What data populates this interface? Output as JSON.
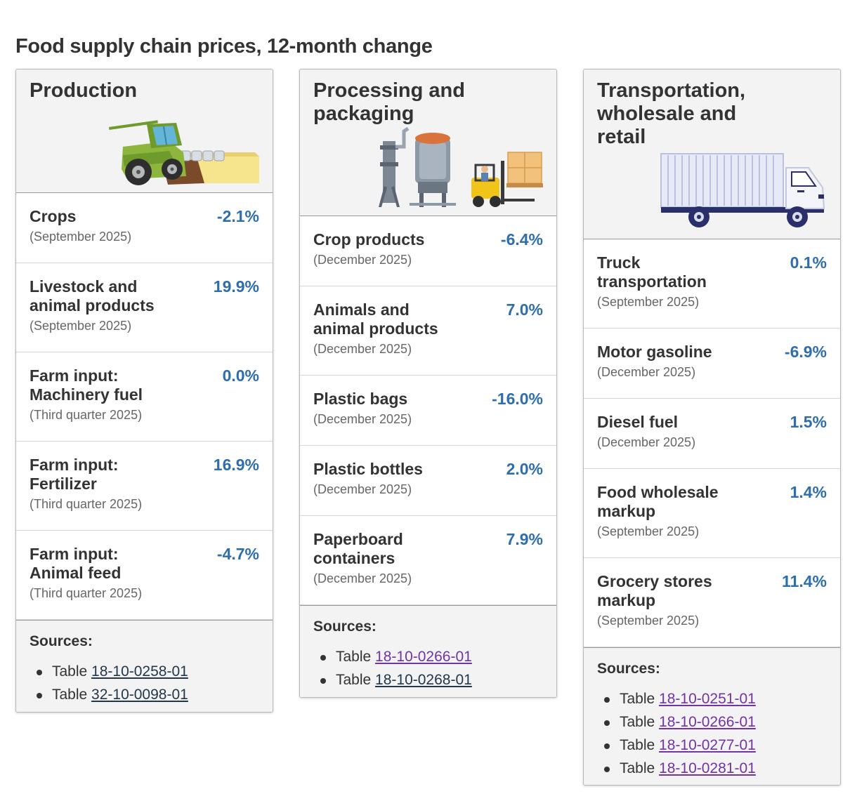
{
  "title": "Food supply chain prices, 12-month change",
  "colors": {
    "value": "#2e6ead",
    "link": "#23374b",
    "visited_link": "#7133a6"
  },
  "cards": [
    {
      "title": "Production",
      "illustration": "combine-harvester-icon",
      "rows": [
        {
          "name": "Crops",
          "date": "(September 2025)",
          "value": "-2.1%"
        },
        {
          "name": "Livestock and animal products",
          "date": "(September 2025)",
          "value": "19.9%"
        },
        {
          "name": "Farm input: Machinery fuel",
          "date": "(Third quarter 2025)",
          "value": "0.0%"
        },
        {
          "name": "Farm input: Fertilizer",
          "date": "(Third quarter 2025)",
          "value": "16.9%"
        },
        {
          "name": "Farm input: Animal feed",
          "date": "(Third quarter 2025)",
          "value": "-4.7%"
        }
      ],
      "sources_label": "Sources:",
      "sources": [
        {
          "prefix": "Table",
          "link": "18-10-0258-01"
        },
        {
          "prefix": "Table",
          "link": "32-10-0098-01"
        }
      ]
    },
    {
      "title": "Processing and packaging",
      "illustration": "factory-forklift-icon",
      "rows": [
        {
          "name": "Crop products",
          "date": "(December 2025)",
          "value": "-6.4%"
        },
        {
          "name": "Animals and animal products",
          "date": "(December 2025)",
          "value": "7.0%"
        },
        {
          "name": "Plastic bags",
          "date": "(December 2025)",
          "value": "-16.0%"
        },
        {
          "name": "Plastic bottles",
          "date": "(December 2025)",
          "value": "2.0%"
        },
        {
          "name": "Paperboard containers",
          "date": "(December 2025)",
          "value": "7.9%"
        }
      ],
      "sources_label": "Sources:",
      "sources": [
        {
          "prefix": "Table",
          "link": "18-10-0266-01"
        },
        {
          "prefix": "Table",
          "link": "18-10-0268-01"
        }
      ]
    },
    {
      "title": "Transportation, wholesale and retail",
      "illustration": "delivery-truck-icon",
      "rows": [
        {
          "name": "Truck transportation",
          "date": "(September 2025)",
          "value": "0.1%"
        },
        {
          "name": "Motor gasoline",
          "date": "(December 2025)",
          "value": "-6.9%"
        },
        {
          "name": "Diesel fuel",
          "date": "(December 2025)",
          "value": "1.5%"
        },
        {
          "name": "Food wholesale markup",
          "date": "(September 2025)",
          "value": "1.4%"
        },
        {
          "name": "Grocery stores markup",
          "date": "(September 2025)",
          "value": "11.4%"
        }
      ],
      "sources_label": "Sources:",
      "sources": [
        {
          "prefix": "Table",
          "link": "18-10-0251-01"
        },
        {
          "prefix": "Table",
          "link": "18-10-0266-01"
        },
        {
          "prefix": "Table",
          "link": "18-10-0277-01"
        },
        {
          "prefix": "Table",
          "link": "18-10-0281-01"
        }
      ]
    }
  ]
}
